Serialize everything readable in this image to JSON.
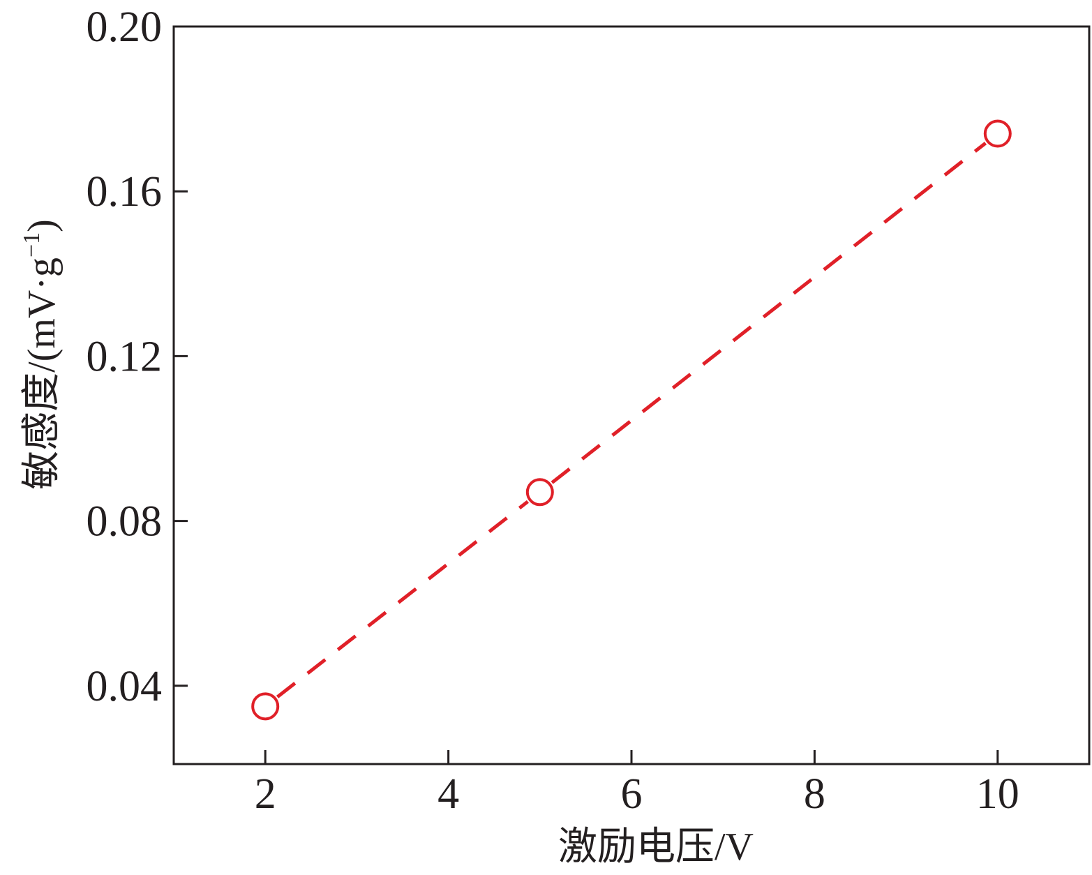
{
  "chart_data": {
    "type": "line",
    "title": "",
    "xlabel": "激励电压/V",
    "ylabel": "敏感度/(mV·g",
    "ylabel_sup": "−1",
    "ylabel_close": ")",
    "xlim": [
      1,
      11
    ],
    "ylim": [
      0.021,
      0.2
    ],
    "x_ticks": [
      2,
      4,
      6,
      8,
      10
    ],
    "x_tick_labels": [
      "2",
      "4",
      "6",
      "8",
      "10"
    ],
    "y_ticks": [
      0.04,
      0.08,
      0.12,
      0.16,
      0.2
    ],
    "y_tick_labels": [
      "0.04",
      "0.08",
      "0.12",
      "0.16",
      "0.20"
    ],
    "grid": false,
    "series": [
      {
        "x": [
          2,
          5,
          10
        ],
        "y": [
          0.035,
          0.087,
          0.174
        ],
        "color": "#e02028",
        "line_style": "dashed",
        "marker": "open-circle"
      }
    ]
  }
}
